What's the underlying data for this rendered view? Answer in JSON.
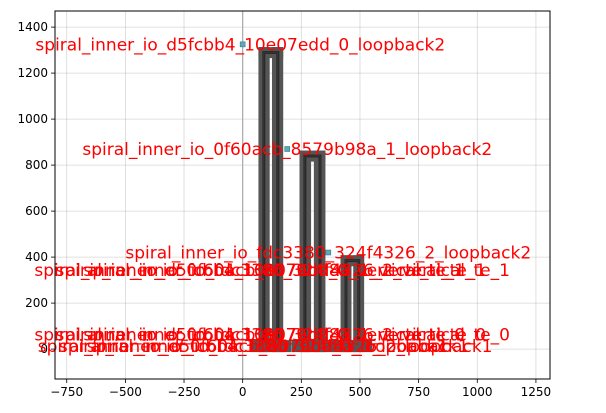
{
  "chart_data": {
    "type": "scatter",
    "title": "",
    "xlabel": "",
    "ylabel": "",
    "xlim": [
      -800,
      1310
    ],
    "ylim": [
      -130,
      1470
    ],
    "xticks": [
      -750,
      -500,
      -250,
      0,
      250,
      500,
      750,
      1000,
      1250
    ],
    "yticks": [
      0,
      200,
      400,
      600,
      800,
      1000,
      1200,
      1400
    ],
    "grid": true,
    "reference_line_x": 0,
    "colors": {
      "label": "#ff0000",
      "wire": "#555555",
      "reference_line": "#a9a9a9",
      "port": "#5fa8b5"
    },
    "spirals": [
      {
        "x": [
          80,
          160
        ],
        "top": 1300,
        "port": [
          190,
          870
        ]
      },
      {
        "x": [
          255,
          340
        ],
        "top": 850,
        "port": [
          365,
          420
        ]
      },
      {
        "x": [
          430,
          505
        ],
        "top": 395,
        "port": null
      }
    ],
    "spiral_bottom": 0,
    "ports": [
      {
        "x": 0,
        "y": 1325
      },
      {
        "x": 190,
        "y": 870
      },
      {
        "x": 365,
        "y": 420
      }
    ],
    "annotations": [
      {
        "text": "spiral_inner_io_d5fcbb4_10e07edd_0_loopback2",
        "x": -10,
        "y": 1320
      },
      {
        "text": "spiral_inner_io_0f60acb_8579b98a_1_loopback2",
        "x": 190,
        "y": 865
      },
      {
        "text": "spiral_inner_io_fdc3380_324f4326_2_loopback2",
        "x": 365,
        "y": 415
      },
      {
        "text": "spiral_inner_io_d5fcbb4_10e07edd_0_vertical_te_1",
        "x": 30,
        "y": 340
      },
      {
        "text": "spiral_inner_io_0f60acb_8579b98a_1_vertical_te_1",
        "x": 120,
        "y": 340
      },
      {
        "text": "spiral_inner_io_fdc3380_324f4326_2_vertical_te_1",
        "x": 230,
        "y": 340
      },
      {
        "text": "spiral_inner_io_d5fcbb4_10e07edd_0_vertical_te_0",
        "x": 30,
        "y": 60
      },
      {
        "text": "spiral_inner_io_0f60acb_8579b98a_1_vertical_te_0",
        "x": 120,
        "y": 60
      },
      {
        "text": "spiral_inner_io_fdc3380_324f4326_2_vertical_te_0",
        "x": 230,
        "y": 60
      },
      {
        "text": "spiral_inner_io_d5fcbb4_10e07edd_0_loopback1",
        "x": 0,
        "y": 10
      },
      {
        "text": "spiral_inner_io_0f60acb_8579b98a_1_loopback1",
        "x": 90,
        "y": 10
      },
      {
        "text": "spiral_inner_io_fdc3380_324f4326_2_loopback1",
        "x": 200,
        "y": 10
      }
    ]
  }
}
